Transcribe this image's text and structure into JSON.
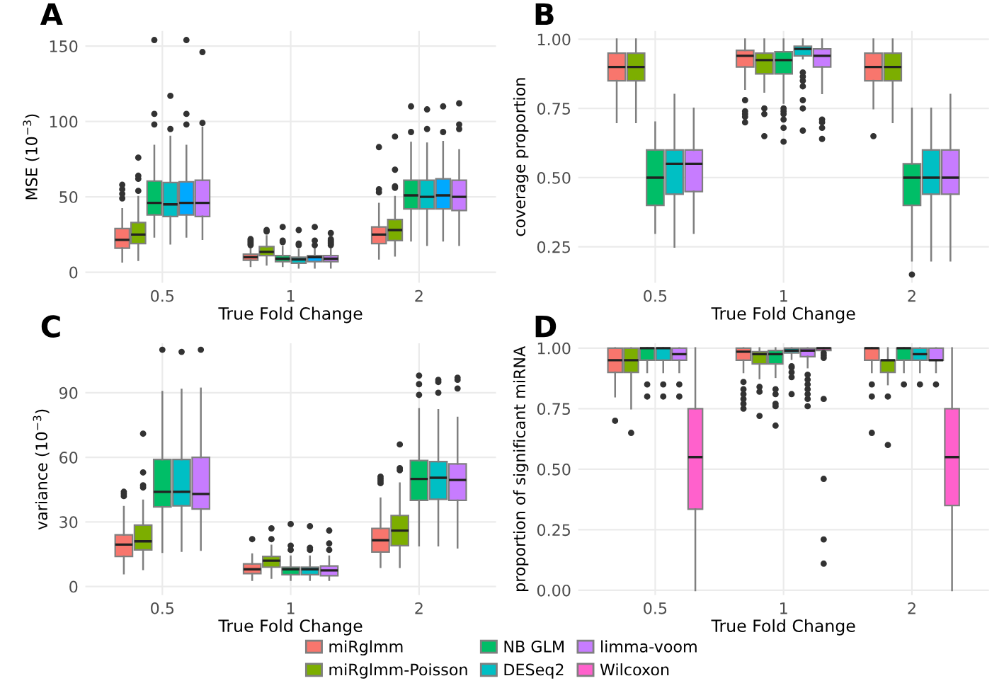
{
  "chart_data": [
    {
      "type": "box",
      "title": "A",
      "xlabel": "True Fold Change",
      "ylabel": "MSE (10$^{−3}$)",
      "categories": [
        "0.5",
        "1",
        "2"
      ],
      "ylim": [
        -7,
        160
      ],
      "yticks": [
        0,
        50,
        100,
        150
      ],
      "grid": true,
      "series": [
        {
          "color": "#F8766D",
          "boxes": [
            {
              "low": 7,
              "q1": 16,
              "median": 21.5,
              "q3": 29,
              "high": 42,
              "outliers": [
                49,
                52,
                55,
                58
              ]
            },
            {
              "low": 4,
              "q1": 8,
              "median": 10,
              "q3": 12,
              "high": 16,
              "outliers": [
                18,
                19,
                20,
                21,
                22
              ]
            },
            {
              "low": 9,
              "q1": 19,
              "median": 25,
              "q3": 30,
              "high": 45.5,
              "outliers": [
                53,
                55,
                83
              ]
            }
          ]
        },
        {
          "color": "#7CAE00",
          "boxes": [
            {
              "low": 8,
              "q1": 19,
              "median": 25,
              "q3": 33,
              "high": 50,
              "outliers": [
                54,
                62,
                64,
                76
              ]
            },
            {
              "low": 5,
              "q1": 11,
              "median": 13.5,
              "q3": 17,
              "high": 24,
              "outliers": [
                27,
                28
              ]
            },
            {
              "low": 11,
              "q1": 21,
              "median": 28,
              "q3": 35,
              "high": 50,
              "outliers": [
                56,
                57,
                68,
                90
              ]
            }
          ]
        },
        {
          "color": "#00BE67",
          "boxes": [
            {
              "low": 23.5,
              "q1": 38,
              "median": 46,
              "q3": 60.5,
              "high": 84,
              "outliers": [
                98,
                105,
                154
              ]
            },
            {
              "low": 4,
              "q1": 7,
              "median": 9,
              "q3": 11,
              "high": 17,
              "outliers": [
                20,
                21,
                30
              ]
            },
            {
              "low": 21,
              "q1": 42,
              "median": 51,
              "q3": 61,
              "high": 86,
              "outliers": [
                93,
                110
              ]
            }
          ]
        },
        {
          "color": "#00BFC4",
          "boxes": [
            {
              "low": 19,
              "q1": 37,
              "median": 45,
              "q3": 59.5,
              "high": 90,
              "outliers": [
                95,
                117
              ]
            },
            {
              "low": 3,
              "q1": 6,
              "median": 8.5,
              "q3": 10,
              "high": 15,
              "outliers": [
                18,
                19,
                28
              ]
            },
            {
              "low": 18,
              "q1": 42,
              "median": 50,
              "q3": 61,
              "high": 85.5,
              "outliers": [
                95,
                108
              ]
            }
          ]
        },
        {
          "color": "#00A9FF",
          "boxes": [
            {
              "low": 23.5,
              "q1": 38,
              "median": 46,
              "q3": 60,
              "high": 84,
              "outliers": [
                98,
                105,
                154
              ]
            },
            {
              "low": 3,
              "q1": 7,
              "median": 10,
              "q3": 11,
              "high": 16,
              "outliers": [
                18,
                21,
                30
              ]
            },
            {
              "low": 21,
              "q1": 42,
              "median": 51,
              "q3": 62,
              "high": 86.5,
              "outliers": [
                93,
                110
              ]
            }
          ]
        },
        {
          "color": "#C77CFF",
          "boxes": [
            {
              "low": 22,
              "q1": 37,
              "median": 46,
              "q3": 61,
              "high": 96,
              "outliers": [
                99,
                146
              ]
            },
            {
              "low": 3,
              "q1": 7,
              "median": 9,
              "q3": 11,
              "high": 16,
              "outliers": [
                18,
                19,
                20,
                21,
                22,
                26
              ]
            },
            {
              "low": 18,
              "q1": 41,
              "median": 50,
              "q3": 61,
              "high": 81,
              "outliers": [
                95,
                98,
                112
              ]
            }
          ]
        }
      ]
    },
    {
      "type": "box",
      "title": "B",
      "xlabel": "True Fold Change",
      "ylabel": "coverage proportion",
      "categories": [
        "0.5",
        "1",
        "2"
      ],
      "ylim": [
        0.12,
        1.03
      ],
      "yticks": [
        {
          "value": 0.25,
          "label": "0.25"
        },
        {
          "value": 0.5,
          "label": "0.50"
        },
        {
          "value": 0.75,
          "label": "0.75"
        },
        {
          "value": 1.0,
          "label": "1.00"
        }
      ],
      "grid": true,
      "series": [
        {
          "color": "#F8766D",
          "boxes": [
            {
              "low": 0.7,
              "q1": 0.85,
              "median": 0.9,
              "q3": 0.95,
              "high": 1.0
            },
            {
              "low": 0.82,
              "q1": 0.9,
              "median": 0.94,
              "q3": 0.96,
              "high": 1.0,
              "outliers": [
                0.7,
                0.72,
                0.73,
                0.74,
                0.78
              ]
            },
            {
              "low": 0.75,
              "q1": 0.85,
              "median": 0.9,
              "q3": 0.95,
              "high": 1.0,
              "outliers": [
                0.65
              ]
            }
          ]
        },
        {
          "color": "#7CAE00",
          "boxes": [
            {
              "low": 0.7,
              "q1": 0.85,
              "median": 0.9,
              "q3": 0.95,
              "high": 1.0
            },
            {
              "low": 0.81,
              "q1": 0.875,
              "median": 0.925,
              "q3": 0.95,
              "high": 1.0,
              "outliers": [
                0.65,
                0.73,
                0.75
              ]
            },
            {
              "low": 0.7,
              "q1": 0.85,
              "median": 0.9,
              "q3": 0.95,
              "high": 1.0
            }
          ]
        },
        {
          "color": "#00BE67",
          "boxes": [
            {
              "low": 0.3,
              "q1": 0.4,
              "median": 0.5,
              "q3": 0.6,
              "high": 0.7
            },
            {
              "low": 0.77,
              "q1": 0.875,
              "median": 0.925,
              "q3": 0.955,
              "high": 1.0,
              "outliers": [
                0.63,
                0.68,
                0.71,
                0.73,
                0.74,
                0.75
              ]
            },
            {
              "low": 0.2,
              "q1": 0.4,
              "median": 0.5,
              "q3": 0.55,
              "high": 0.75,
              "outliers": [
                0.15
              ]
            }
          ]
        },
        {
          "color": "#00BFC4",
          "boxes": [
            {
              "low": 0.25,
              "q1": 0.44,
              "median": 0.55,
              "q3": 0.6,
              "high": 0.8
            },
            {
              "low": 0.93,
              "q1": 0.94,
              "median": 0.965,
              "q3": 0.975,
              "high": 1.0,
              "outliers": [
                0.67,
                0.75,
                0.78,
                0.83,
                0.85,
                0.865,
                0.88
              ]
            },
            {
              "low": 0.2,
              "q1": 0.44,
              "median": 0.5,
              "q3": 0.6,
              "high": 0.75
            }
          ]
        },
        {
          "color": "#C77CFF",
          "boxes": [
            {
              "low": 0.3,
              "q1": 0.45,
              "median": 0.55,
              "q3": 0.6,
              "high": 0.75
            },
            {
              "low": 0.805,
              "q1": 0.9,
              "median": 0.94,
              "q3": 0.965,
              "high": 1.0,
              "outliers": [
                0.64,
                0.68,
                0.7,
                0.71
              ]
            },
            {
              "low": 0.2,
              "q1": 0.44,
              "median": 0.5,
              "q3": 0.6,
              "high": 0.8
            }
          ]
        }
      ]
    },
    {
      "type": "box",
      "title": "C",
      "xlabel": "True Fold Change",
      "ylabel": "variance (10$^{−3}$)",
      "categories": [
        "0.5",
        "1",
        "2"
      ],
      "ylim": [
        -4,
        113
      ],
      "yticks": [
        0,
        30,
        60,
        90
      ],
      "grid": true,
      "series": [
        {
          "color": "#F8766D",
          "boxes": [
            {
              "low": 6,
              "q1": 14,
              "median": 19.5,
              "q3": 24,
              "high": 37,
              "outliers": [
                42,
                43,
                44
              ]
            },
            {
              "low": 3,
              "q1": 6,
              "median": 8,
              "q3": 10.5,
              "high": 15,
              "outliers": [
                22
              ]
            },
            {
              "low": 9,
              "q1": 16,
              "median": 21.5,
              "q3": 27,
              "high": 41,
              "outliers": [
                48,
                49,
                50,
                51
              ]
            }
          ]
        },
        {
          "color": "#7CAE00",
          "boxes": [
            {
              "low": 8,
              "q1": 17,
              "median": 21,
              "q3": 28.5,
              "high": 40,
              "outliers": [
                46,
                47,
                53,
                71
              ]
            },
            {
              "low": 4,
              "q1": 9,
              "median": 12,
              "q3": 14,
              "high": 19,
              "outliers": [
                22,
                27
              ]
            },
            {
              "low": 9,
              "q1": 19,
              "median": 26,
              "q3": 33,
              "high": 48,
              "outliers": [
                54,
                55,
                66
              ]
            }
          ]
        },
        {
          "color": "#00BE67",
          "boxes": [
            {
              "low": 16,
              "q1": 37,
              "median": 44,
              "q3": 59,
              "high": 90.5,
              "outliers": [
                110
              ]
            },
            {
              "low": 3,
              "q1": 5.5,
              "median": 8,
              "q3": 9,
              "high": 14,
              "outliers": [
                17,
                19,
                29
              ]
            },
            {
              "low": 19,
              "q1": 40,
              "median": 50,
              "q3": 58.5,
              "high": 82.5,
              "outliers": [
                89,
                94,
                98
              ]
            }
          ]
        },
        {
          "color": "#00BFC4",
          "boxes": [
            {
              "low": 16.5,
              "q1": 37.5,
              "median": 44,
              "q3": 59,
              "high": 91.5,
              "outliers": [
                109
              ]
            },
            {
              "low": 3,
              "q1": 5.5,
              "median": 8,
              "q3": 9,
              "high": 14,
              "outliers": [
                17,
                18,
                28
              ]
            },
            {
              "low": 19,
              "q1": 40.5,
              "median": 50.5,
              "q3": 58,
              "high": 82,
              "outliers": [
                90,
                95,
                96
              ]
            }
          ]
        },
        {
          "color": "#C77CFF",
          "boxes": [
            {
              "low": 17,
              "q1": 36,
              "median": 43,
              "q3": 60,
              "high": 92,
              "outliers": [
                110
              ]
            },
            {
              "low": 3,
              "q1": 5,
              "median": 7.5,
              "q3": 9.5,
              "high": 14,
              "outliers": [
                17,
                20,
                26
              ]
            },
            {
              "low": 18,
              "q1": 40,
              "median": 49.5,
              "q3": 57,
              "high": 78.5,
              "outliers": [
                92,
                96,
                97
              ]
            }
          ]
        }
      ]
    },
    {
      "type": "box",
      "title": "D",
      "xlabel": "True Fold Change",
      "ylabel": "proportion of significant miRNA",
      "categories": [
        "0.5",
        "1",
        "2"
      ],
      "ylim": [
        -0.02,
        1.02
      ],
      "yticks": [
        {
          "value": 0,
          "label": "0.00"
        },
        {
          "value": 0.25,
          "label": "0.25"
        },
        {
          "value": 0.5,
          "label": "0.50"
        },
        {
          "value": 0.75,
          "label": "0.75"
        },
        {
          "value": 1.0,
          "label": "1.00"
        }
      ],
      "grid": true,
      "legend": "bottom",
      "series": [
        {
          "name": "miRglmm",
          "color": "#F8766D",
          "boxes": [
            {
              "low": 0.8,
              "q1": 0.9,
              "median": 0.95,
              "q3": 1.0,
              "high": 1.0,
              "outliers": [
                0.7
              ]
            },
            {
              "low": 0.9,
              "q1": 0.95,
              "median": 0.985,
              "q3": 1.0,
              "high": 1.0,
              "outliers": [
                0.75,
                0.77,
                0.79,
                0.81,
                0.83,
                0.86
              ]
            },
            {
              "low": 0.9,
              "q1": 0.95,
              "median": 1.0,
              "q3": 1.0,
              "high": 1.0,
              "outliers": [
                0.65,
                0.8,
                0.85
              ]
            }
          ]
        },
        {
          "name": "miRglmm-Poisson",
          "color": "#7CAE00",
          "boxes": [
            {
              "low": 0.75,
              "q1": 0.9,
              "median": 0.95,
              "q3": 1.0,
              "high": 1.0,
              "outliers": [
                0.65
              ]
            },
            {
              "low": 0.875,
              "q1": 0.935,
              "median": 0.975,
              "q3": 0.985,
              "high": 1.0,
              "outliers": [
                0.72,
                0.82,
                0.84
              ]
            },
            {
              "low": 0.85,
              "q1": 0.9,
              "median": 0.95,
              "q3": 0.95,
              "high": 1.0,
              "outliers": [
                0.6,
                0.8
              ]
            }
          ]
        },
        {
          "name": "NB GLM",
          "color": "#00BE67",
          "boxes": [
            {
              "low": 0.9,
              "q1": 0.95,
              "median": 1.0,
              "q3": 1.0,
              "high": 1.0,
              "outliers": [
                0.8,
                0.85
              ]
            },
            {
              "low": 0.88,
              "q1": 0.935,
              "median": 0.975,
              "q3": 0.99,
              "high": 1.0,
              "outliers": [
                0.68,
                0.76,
                0.77,
                0.81,
                0.83
              ]
            },
            {
              "low": 0.9,
              "q1": 0.95,
              "median": 1.0,
              "q3": 1.0,
              "high": 1.0,
              "outliers": [
                0.85
              ]
            }
          ]
        },
        {
          "name": "DESeq2",
          "color": "#00BFC4",
          "boxes": [
            {
              "low": 0.9,
              "q1": 0.95,
              "median": 1.0,
              "q3": 1.0,
              "high": 1.0,
              "outliers": [
                0.8,
                0.85
              ]
            },
            {
              "low": 0.955,
              "q1": 0.98,
              "median": 0.99,
              "q3": 1.0,
              "high": 1.0,
              "outliers": [
                0.81,
                0.88,
                0.9,
                0.92,
                0.925
              ]
            },
            {
              "low": 0.9,
              "q1": 0.95,
              "median": 0.975,
              "q3": 1.0,
              "high": 1.0,
              "outliers": [
                0.85
              ]
            }
          ]
        },
        {
          "name": "limma-voom",
          "color": "#C77CFF",
          "boxes": [
            {
              "low": 0.9,
              "q1": 0.95,
              "median": 0.975,
              "q3": 1.0,
              "high": 1.0,
              "outliers": [
                0.8,
                0.85
              ]
            },
            {
              "low": 0.92,
              "q1": 0.965,
              "median": 0.99,
              "q3": 1.0,
              "high": 1.0,
              "outliers": [
                0.76,
                0.79,
                0.81,
                0.83,
                0.85,
                0.87,
                0.89
              ]
            },
            {
              "low": 0.9,
              "q1": 0.95,
              "median": 0.95,
              "q3": 1.0,
              "high": 1.0,
              "outliers": [
                0.85
              ]
            }
          ]
        },
        {
          "name": "Wilcoxon",
          "color": "#FF61CC",
          "boxes": [
            {
              "low": 0,
              "q1": 0.335,
              "median": 0.55,
              "q3": 0.75,
              "high": 1.0
            },
            {
              "low": 0.985,
              "q1": 0.99,
              "median": 1.0,
              "q3": 1.0,
              "high": 1.0,
              "outliers": [
                0.11,
                0.21,
                0.46,
                0.79,
                0.96,
                0.97,
                0.98
              ]
            },
            {
              "low": 0,
              "q1": 0.35,
              "median": 0.55,
              "q3": 0.75,
              "high": 1.0
            }
          ]
        }
      ]
    }
  ]
}
